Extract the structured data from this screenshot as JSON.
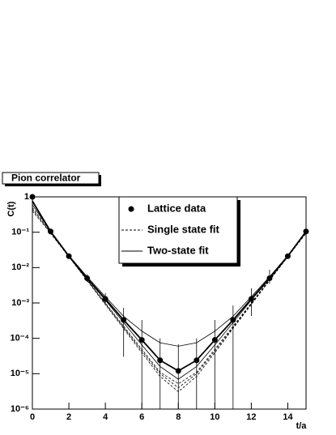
{
  "chart_data": {
    "type": "scatter",
    "title": "Pion correlator",
    "xlabel": "t/a",
    "ylabel": "C(t)",
    "log_y": true,
    "xlim": [
      0,
      15
    ],
    "xticks": [
      0,
      2,
      4,
      6,
      8,
      10,
      12,
      14
    ],
    "ylim": [
      1e-06,
      1
    ],
    "yticks": [
      {
        "value": 1e-06,
        "label": "10⁻⁶"
      },
      {
        "value": 1e-05,
        "label": "10⁻⁵"
      },
      {
        "value": 0.0001,
        "label": "10⁻⁴"
      },
      {
        "value": 0.001,
        "label": "10⁻³"
      },
      {
        "value": 0.01,
        "label": "10⁻²"
      },
      {
        "value": 0.1,
        "label": "10⁻¹"
      },
      1
    ],
    "x": [
      0,
      1,
      2,
      3,
      4,
      5,
      6,
      7,
      8,
      9,
      10,
      11,
      12,
      13,
      14,
      15
    ],
    "series": [
      {
        "name": "Lattice data",
        "color": "#000000",
        "values": [
          1,
          0.105,
          0.021,
          0.005,
          0.0013,
          0.00033,
          9e-05,
          2.4e-05,
          1.2e-05,
          2.4e-05,
          9e-05,
          0.00033,
          0.0013,
          0.005,
          0.021,
          0.105
        ],
        "errors_minus": [
          0.05,
          0.005,
          0.002,
          0.001,
          0.00035,
          0.0003,
          9e-05,
          2.4e-05,
          1.2e-05,
          2.4e-05,
          9e-05,
          0.00033,
          0.00087,
          0.0015,
          0.003,
          0.01
        ],
        "errors_plus": [
          0.05,
          0.005,
          0.002,
          0.0015,
          0.0006,
          0.0004,
          0.00024,
          7.6e-05,
          5.6e-05,
          7.6e-05,
          0.00024,
          0.00052,
          0.0013,
          0.0037,
          0.003,
          0.01
        ]
      }
    ],
    "fits": [
      {
        "name": "Single state fit",
        "color": "#000000",
        "style": "dashed",
        "curves": [
          [
            0.5,
            0.1,
            0.021,
            0.0046,
            0.001,
            0.00022,
            4.9e-05,
            1.1e-05,
            5.2e-06,
            1.1e-05,
            4.9e-05,
            0.00022,
            0.001,
            0.0046,
            0.021,
            0.1
          ],
          [
            0.45,
            0.0965,
            0.0207,
            0.00444,
            0.00095,
            0.000204,
            4.4e-05,
            1e-05,
            4e-06,
            1e-05,
            4.4e-05,
            0.000204,
            0.00095,
            0.00444,
            0.0207,
            0.0965
          ],
          [
            0.4,
            0.093,
            0.0202,
            0.0043,
            0.0009,
            0.00019,
            3.9e-05,
            8.4e-06,
            3.1e-06,
            8.4e-06,
            3.9e-05,
            0.00019,
            0.0009,
            0.0043,
            0.0202,
            0.093
          ]
        ]
      },
      {
        "name": "Two-state fit",
        "color": "#000000",
        "style": "solid",
        "curves": [
          [
            0.75,
            0.105,
            0.021,
            0.005,
            0.0013,
            0.00033,
            9e-05,
            2.4e-05,
            1.2e-05,
            2.4e-05,
            9e-05,
            0.00033,
            0.0013,
            0.005,
            0.021,
            0.105
          ],
          [
            0.6,
            0.105,
            0.022,
            0.0055,
            0.0015,
            0.00042,
            0.00016,
            7.5e-05,
            6e-05,
            7.5e-05,
            0.00016,
            0.00042,
            0.0015,
            0.0055,
            0.022,
            0.105
          ],
          [
            0.8,
            0.105,
            0.021,
            0.0048,
            0.0012,
            0.00028,
            6.5e-05,
            1.6e-05,
            7e-06,
            1.6e-05,
            6.5e-05,
            0.00028,
            0.0012,
            0.0048,
            0.021,
            0.105
          ]
        ]
      }
    ]
  }
}
